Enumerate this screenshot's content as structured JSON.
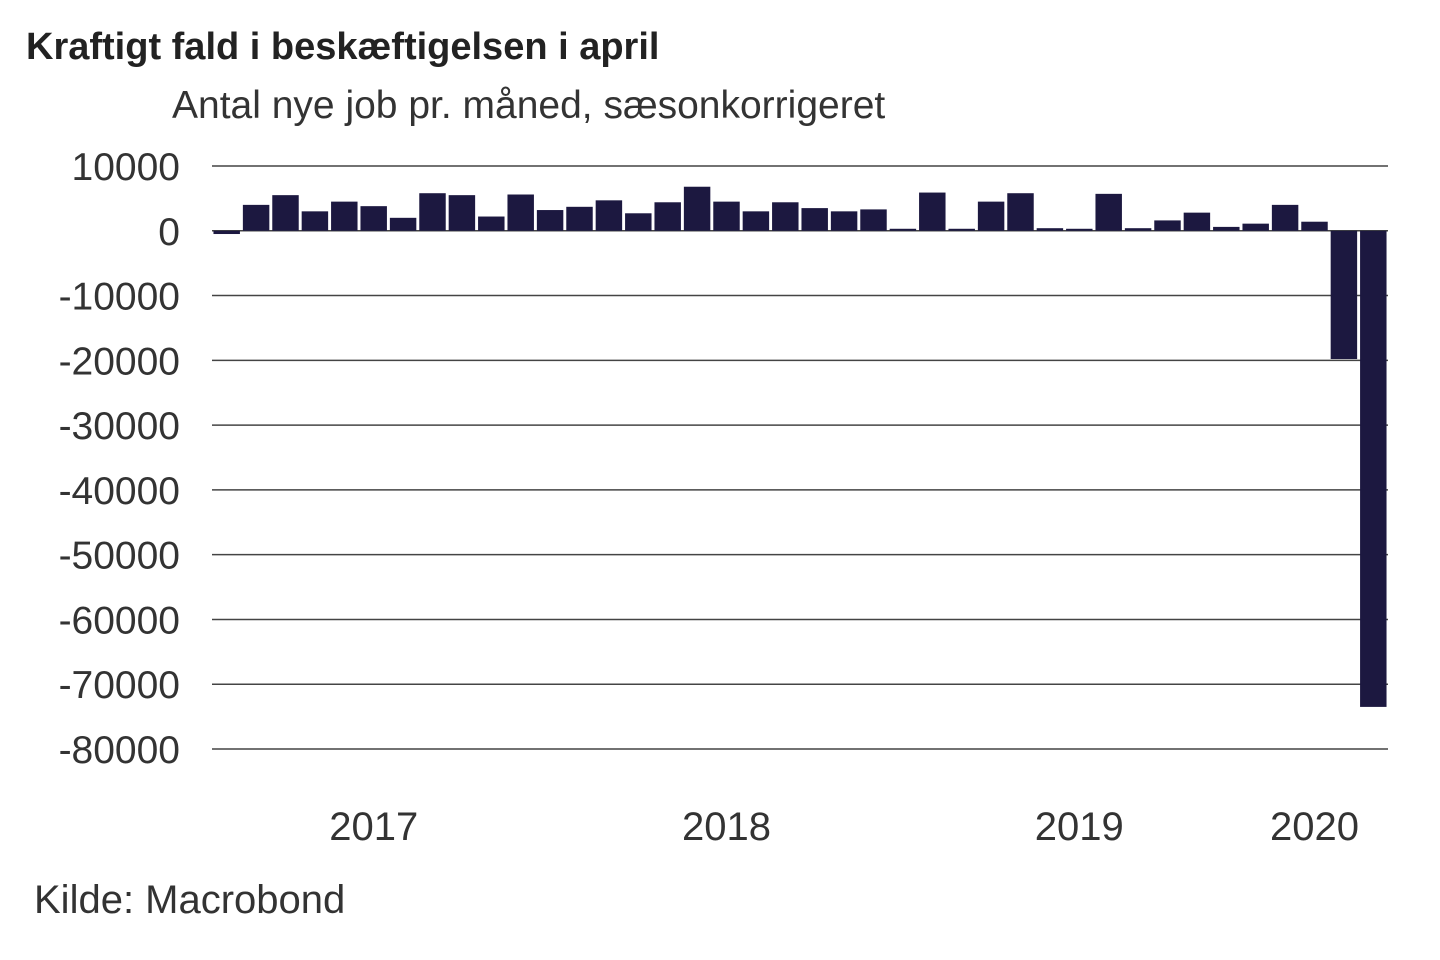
{
  "chart_data": {
    "type": "bar",
    "title": "Kraftigt fald i beskæftigelsen i april",
    "subtitle": "Antal nye job pr. måned, sæsonkorrigeret",
    "source": "Kilde: Macrobond",
    "ylim": [
      -80000,
      10000
    ],
    "yticks": [
      10000,
      0,
      -10000,
      -20000,
      -30000,
      -40000,
      -50000,
      -60000,
      -70000,
      -80000
    ],
    "ytick_labels": [
      "10000",
      "0",
      "-10000",
      "-20000",
      "-30000",
      "-40000",
      "-50000",
      "-60000",
      "-70000",
      "-80000"
    ],
    "x_start": "2016-08",
    "x_labels": [
      {
        "label": "2017",
        "month_index": 5.5
      },
      {
        "label": "2018",
        "month_index": 17.5
      },
      {
        "label": "2019",
        "month_index": 29.5
      },
      {
        "label": "2020",
        "month_index": 37.5
      }
    ],
    "grid": true,
    "bar_color": "#1c1840",
    "values": [
      -500,
      4000,
      5500,
      3000,
      4500,
      3800,
      2000,
      5800,
      5500,
      2200,
      5600,
      3200,
      3700,
      4700,
      2700,
      4400,
      6800,
      4500,
      3000,
      4400,
      3500,
      3000,
      3300,
      0,
      5900,
      200,
      4500,
      5800,
      400,
      300,
      5700,
      400,
      1600,
      2800,
      600,
      1100,
      4000,
      1400,
      -19800,
      -73500
    ]
  }
}
